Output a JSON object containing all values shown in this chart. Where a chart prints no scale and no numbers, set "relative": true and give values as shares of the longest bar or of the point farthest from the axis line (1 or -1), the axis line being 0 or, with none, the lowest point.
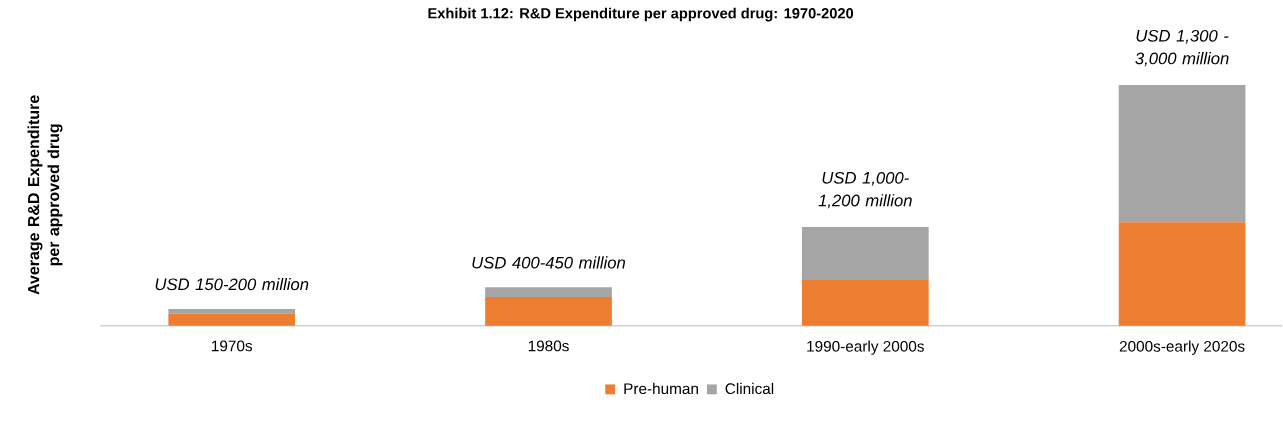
{
  "chart_data": {
    "type": "bar",
    "stacked": true,
    "relative": true,
    "title": "Exhibit 1.12: R&D Expenditure per approved drug: 1970-2020",
    "ylabel": "Average R&D Expenditure per approved drug",
    "categories": [
      "1970s",
      "1980s",
      "1990-early 2000s",
      "2000s-early 2020s"
    ],
    "series": [
      {
        "name": "Pre-human",
        "color": "#ed7d31",
        "values": [
          0.05,
          0.12,
          0.19,
          0.43
        ]
      },
      {
        "name": "Clinical",
        "color": "#a5a5a5",
        "values": [
          0.02,
          0.04,
          0.22,
          0.57
        ]
      }
    ],
    "annotations": [
      {
        "text": "USD 150-200 million",
        "x": "1970s",
        "y": 0.07
      },
      {
        "text": "USD 400-450 million",
        "x": "1980s",
        "y": 0.16
      },
      {
        "text": "USD 1,000-1,200 million",
        "x": "1990-early 2000s",
        "y": 0.41
      },
      {
        "text": "USD 1,300 - 3,000 million",
        "x": "2000s-early 2020s",
        "y": 1.0
      }
    ],
    "legend": "bottom"
  }
}
